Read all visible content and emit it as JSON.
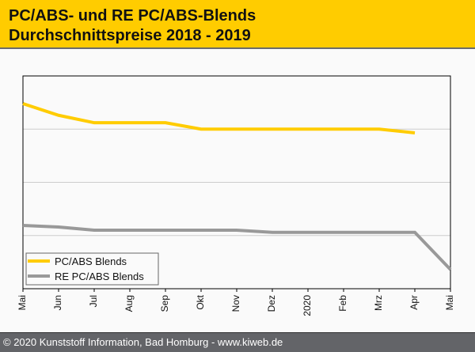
{
  "header": {
    "title_line1": "PC/ABS- und RE PC/ABS-Blends",
    "title_line2": "Durchschnittspreise 2018 - 2019"
  },
  "footer": {
    "text": "© 2020 Kunststoff Information, Bad Homburg - www.kiweb.de"
  },
  "colors": {
    "header_bg": "#ffcc00",
    "series1": "#ffcc00",
    "series2": "#999999",
    "footer_bg": "#636468"
  },
  "chart_data": {
    "type": "line",
    "title": "PC/ABS- und RE PC/ABS-Blends Durchschnittspreise 2018 - 2019",
    "xlabel": "",
    "ylabel": "",
    "categories": [
      "Mai",
      "Jun",
      "Jul",
      "Aug",
      "Sep",
      "Okt",
      "Nov",
      "Dez",
      "2020",
      "Feb",
      "Mrz",
      "Apr",
      "Mai"
    ],
    "ylim": [
      0,
      4
    ],
    "y_units": "relative (no y-axis labels shown)",
    "grid": true,
    "legend_position": "bottom-left",
    "series": [
      {
        "name": "PC/ABS Blends",
        "color": "#ffcc00",
        "values": [
          3.48,
          3.26,
          3.12,
          3.12,
          3.12,
          3.0,
          3.0,
          3.0,
          3.0,
          3.0,
          3.0,
          2.93,
          null
        ]
      },
      {
        "name": "RE PC/ABS Blends",
        "color": "#999999",
        "values": [
          1.19,
          1.16,
          1.1,
          1.1,
          1.1,
          1.1,
          1.1,
          1.06,
          1.06,
          1.06,
          1.06,
          1.06,
          0.36
        ]
      }
    ]
  }
}
